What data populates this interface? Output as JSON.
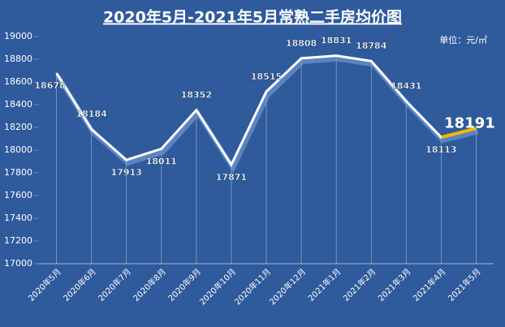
{
  "chart_data": {
    "type": "line",
    "title": "2020年5月-2021年5月常熟二手房均价图",
    "unit": "单位：元/㎡",
    "categories": [
      "2020年5月",
      "2020年6月",
      "2020年7月",
      "2020年8月",
      "2020年9月",
      "2020年10月",
      "2020年11月",
      "2020年12月",
      "2021年1月",
      "2021年2月",
      "2021年3月",
      "2021年4月",
      "2021年5月"
    ],
    "values": [
      18678,
      18184,
      17913,
      18011,
      18352,
      17871,
      18515,
      18808,
      18831,
      18784,
      18431,
      18113,
      18191
    ],
    "color": "#ffffff",
    "highlight_color": "#f5b800",
    "ylim": [
      17000,
      19000
    ],
    "yticks": [
      17000,
      17200,
      17400,
      17600,
      17800,
      18000,
      18200,
      18400,
      18600,
      18800,
      19000
    ]
  }
}
